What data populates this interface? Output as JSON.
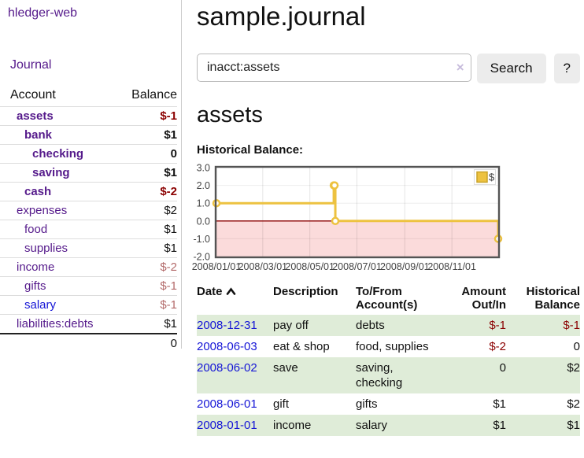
{
  "colors": {
    "link_purple": "#551a8b",
    "link_blue": "#1515d6",
    "negative_strong": "#8b0000",
    "negative_soft": "#b36a6a",
    "row_green": "#dfecd8",
    "chart_gold": "#edc240",
    "chart_negative_region": "#fbdbdb",
    "chart_zero_line": "#8b0000"
  },
  "sidebar": {
    "app_title": "hledger-web",
    "journal_label": "Journal",
    "accounts_table": {
      "account_header": "Account",
      "balance_header": "Balance",
      "rows": [
        {
          "name": "assets",
          "balance": "$-1",
          "depth": 1,
          "bold": true,
          "balance_class": "neg"
        },
        {
          "name": "bank",
          "balance": "$1",
          "depth": 2,
          "bold": true,
          "balance_class": ""
        },
        {
          "name": "checking",
          "balance": "0",
          "depth": 3,
          "bold": true,
          "balance_class": ""
        },
        {
          "name": "saving",
          "balance": "$1",
          "depth": 3,
          "bold": true,
          "balance_class": ""
        },
        {
          "name": "cash",
          "balance": "$-2",
          "depth": 2,
          "bold": true,
          "balance_class": "neg"
        },
        {
          "name": "expenses",
          "balance": "$2",
          "depth": 1,
          "bold": false,
          "balance_class": ""
        },
        {
          "name": "food",
          "balance": "$1",
          "depth": 2,
          "bold": false,
          "balance_class": ""
        },
        {
          "name": "supplies",
          "balance": "$1",
          "depth": 2,
          "bold": false,
          "balance_class": ""
        },
        {
          "name": "income",
          "balance": "$-2",
          "depth": 1,
          "bold": false,
          "balance_class": "negsoft"
        },
        {
          "name": "gifts",
          "balance": "$-1",
          "depth": 2,
          "bold": false,
          "balance_class": "negsoft"
        },
        {
          "name": "salary",
          "balance": "$-1",
          "depth": 2,
          "bold": false,
          "balance_class": "negsoft",
          "link_blue": true
        },
        {
          "name": "liabilities:debts",
          "balance": "$1",
          "depth": 1,
          "bold": false,
          "balance_class": ""
        }
      ],
      "total": "0"
    }
  },
  "main": {
    "title": "sample.journal",
    "search": {
      "value": "inacct:assets",
      "clear_icon": "×",
      "button_label": "Search",
      "help_label": "?"
    },
    "account_heading": "assets",
    "chart_label": "Historical Balance:"
  },
  "chart_data": {
    "type": "line",
    "title": "Historical Balance",
    "step": true,
    "series": [
      {
        "name": "$",
        "color": "#edc240",
        "points": [
          [
            "2008-01-01",
            1.0
          ],
          [
            "2008-06-01",
            2.0
          ],
          [
            "2008-06-02",
            2.0
          ],
          [
            "2008-06-03",
            0.0
          ],
          [
            "2008-12-31",
            -1.0
          ]
        ]
      }
    ],
    "xrange": [
      "2008-01-01",
      "2008-12-31"
    ],
    "ylim": [
      -2.0,
      3.0
    ],
    "x_ticks": [
      "2008/01/01",
      "2008/03/01",
      "2008/05/01",
      "2008/07/01",
      "2008/09/01",
      "2008/11/01"
    ],
    "y_ticks": [
      "3.0",
      "2.0",
      "1.0",
      "0.0",
      "-1.0",
      "-2.0"
    ],
    "legend": "$",
    "legend_position": "top-right",
    "grid": true,
    "negative_region_color": "#fbdbdb",
    "zero_line_color": "#8b0000"
  },
  "transactions": {
    "headers": {
      "date": "Date",
      "description": "Description",
      "accounts": "To/From Account(s)",
      "amount": "Amount Out/In",
      "balance": "Historical Balance"
    },
    "rows": [
      {
        "date": "2008-12-31",
        "description": "pay off",
        "accounts": "debts",
        "amount": "$-1",
        "amount_class": "neg",
        "balance": "$-1",
        "balance_class": "neg"
      },
      {
        "date": "2008-06-03",
        "description": "eat & shop",
        "accounts": "food, supplies",
        "amount": "$-2",
        "amount_class": "neg",
        "balance": "0",
        "balance_class": ""
      },
      {
        "date": "2008-06-02",
        "description": "save",
        "accounts": "saving, checking",
        "amount": "0",
        "amount_class": "",
        "balance": "$2",
        "balance_class": ""
      },
      {
        "date": "2008-06-01",
        "description": "gift",
        "accounts": "gifts",
        "amount": "$1",
        "amount_class": "",
        "balance": "$2",
        "balance_class": ""
      },
      {
        "date": "2008-01-01",
        "description": "income",
        "accounts": "salary",
        "amount": "$1",
        "amount_class": "",
        "balance": "$1",
        "balance_class": ""
      }
    ]
  }
}
